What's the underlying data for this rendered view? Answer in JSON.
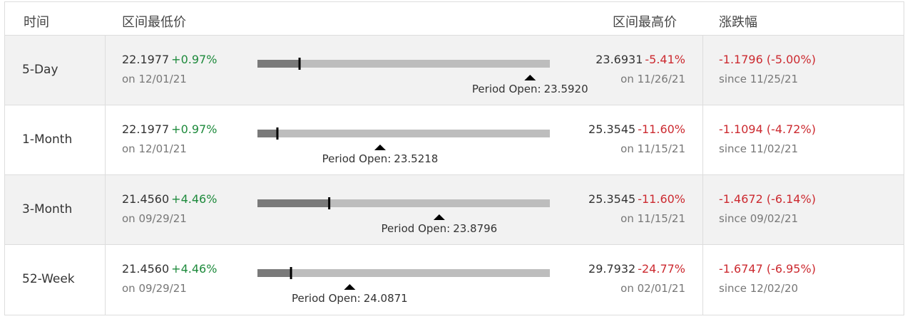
{
  "header": {
    "period": "时间",
    "low": "区间最低价",
    "high": "区间最高价",
    "change": "涨跌幅"
  },
  "open_label": "Period Open:",
  "rows": [
    {
      "period": "5-Day",
      "low": {
        "value": 22.1977,
        "label": "22.1977"
      },
      "low_change": {
        "value": 0.97,
        "label": "+0.97%"
      },
      "low_date": "on 12/01/21",
      "high": {
        "value": 23.6931,
        "label": "23.6931"
      },
      "high_change": {
        "value": -5.41,
        "label": "-5.41%"
      },
      "high_date": "on 11/26/21",
      "open": {
        "value": 23.592,
        "label": "23.5920"
      },
      "change": "-1.1796 (-5.00%)",
      "since": "since 11/25/21"
    },
    {
      "period": "1-Month",
      "low": {
        "value": 22.1977,
        "label": "22.1977"
      },
      "low_change": {
        "value": 0.97,
        "label": "+0.97%"
      },
      "low_date": "on 12/01/21",
      "high": {
        "value": 25.3545,
        "label": "25.3545"
      },
      "high_change": {
        "value": -11.6,
        "label": "-11.60%"
      },
      "high_date": "on 11/15/21",
      "open": {
        "value": 23.5218,
        "label": "23.5218"
      },
      "change": "-1.1094 (-4.72%)",
      "since": "since 11/02/21"
    },
    {
      "period": "3-Month",
      "low": {
        "value": 21.456,
        "label": "21.4560"
      },
      "low_change": {
        "value": 4.46,
        "label": "+4.46%"
      },
      "low_date": "on 09/29/21",
      "high": {
        "value": 25.3545,
        "label": "25.3545"
      },
      "high_change": {
        "value": -11.6,
        "label": "-11.60%"
      },
      "high_date": "on 11/15/21",
      "open": {
        "value": 23.8796,
        "label": "23.8796"
      },
      "change": "-1.4672 (-6.14%)",
      "since": "since 09/02/21"
    },
    {
      "period": "52-Week",
      "low": {
        "value": 21.456,
        "label": "21.4560"
      },
      "low_change": {
        "value": 4.46,
        "label": "+4.46%"
      },
      "low_date": "on 09/29/21",
      "high": {
        "value": 29.7932,
        "label": "29.7932"
      },
      "high_change": {
        "value": -24.77,
        "label": "-24.77%"
      },
      "high_date": "on 02/01/21",
      "open": {
        "value": 24.0871,
        "label": "24.0871"
      },
      "change": "-1.6747 (-6.95%)",
      "since": "since 12/02/20"
    }
  ]
}
